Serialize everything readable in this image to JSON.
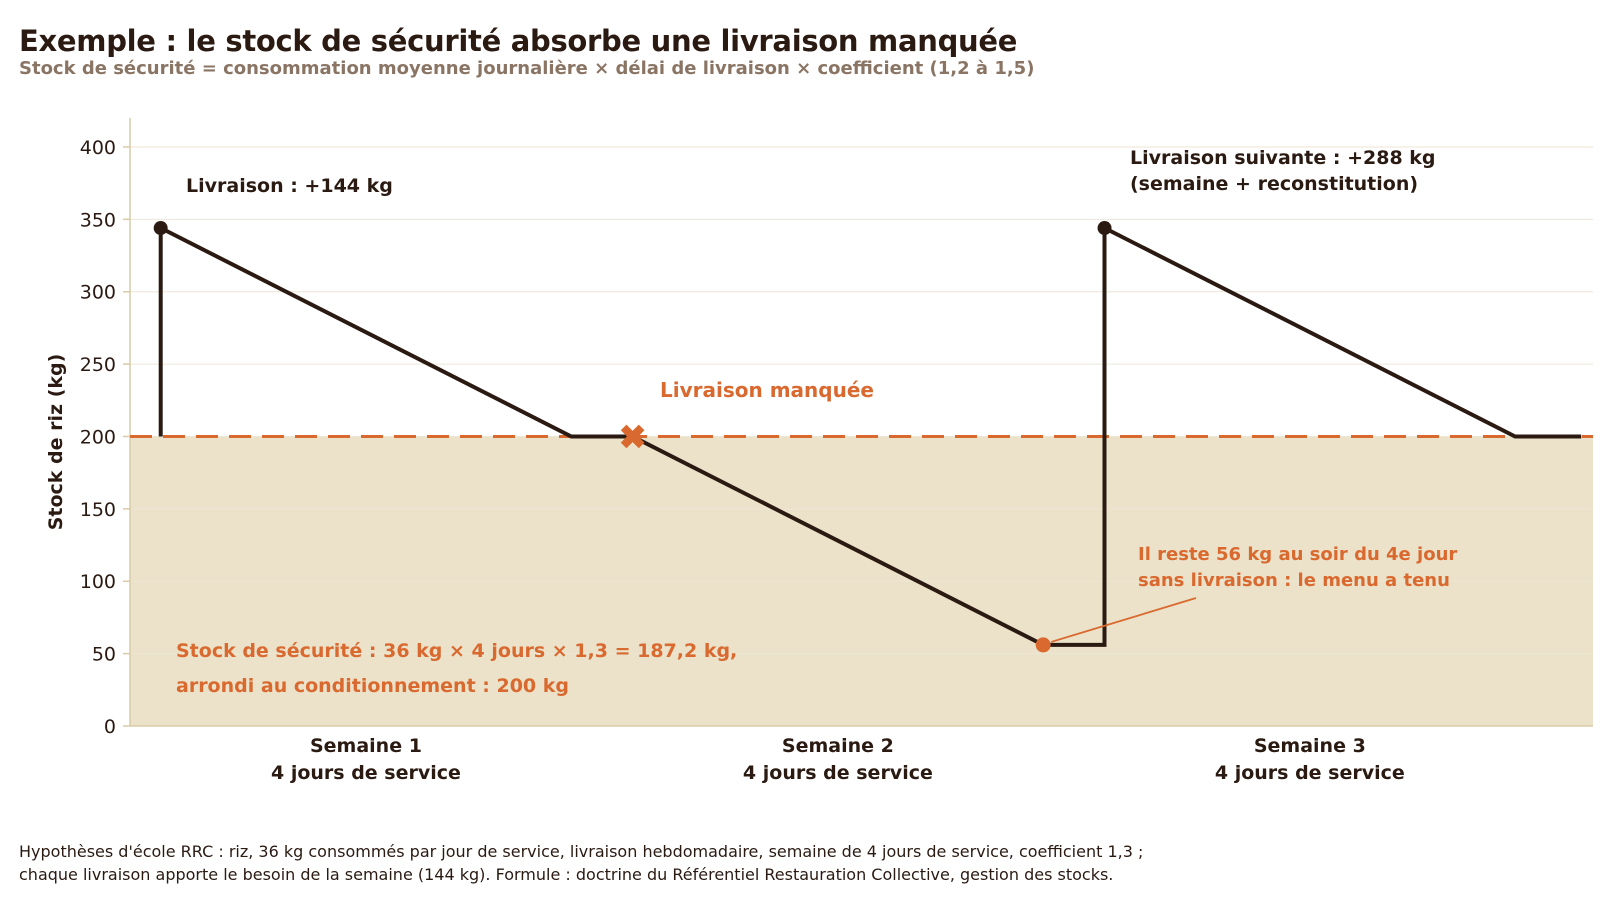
{
  "title": "Exemple : le stock de sécurité absorbe une livraison manquée",
  "subtitle": "Stock de sécurité = consommation moyenne journalière × délai de livraison × coefficient (1,2 à 1,5)",
  "footnote": {
    "line1": "Hypothèses d'école RRC : riz, 36 kg consommés par jour de service, livraison hebdomadaire, semaine de 4 jours de service, coefficient 1,3 ;",
    "line2": "chaque livraison apporte le besoin de la semaine (144 kg). Formule : doctrine du Référentiel Restauration Collective, gestion des stocks."
  },
  "chart_data": {
    "type": "line",
    "ylabel": "Stock de riz (kg)",
    "ylim": [
      0,
      420
    ],
    "yticks": [
      0,
      50,
      100,
      150,
      200,
      250,
      300,
      350,
      400
    ],
    "xlim": [
      0,
      12.4
    ],
    "categories": [
      {
        "x": 2,
        "lines": [
          "Semaine 1",
          "4 jours de service"
        ]
      },
      {
        "x": 6,
        "lines": [
          "Semaine 2",
          "4 jours de service"
        ]
      },
      {
        "x": 10,
        "lines": [
          "Semaine 3",
          "4 jours de service"
        ]
      }
    ],
    "grid": true,
    "series": [
      {
        "values": [
          {
            "x": 0.26,
            "y": 200
          },
          {
            "x": 0.26,
            "y": 344
          },
          {
            "x": 3.74,
            "y": 200
          },
          {
            "x": 4.26,
            "y": 200
          },
          {
            "x": 7.74,
            "y": 56
          },
          {
            "x": 8.26,
            "y": 56
          },
          {
            "x": 8.26,
            "y": 344
          },
          {
            "x": 11.74,
            "y": 200
          },
          {
            "x": 12.3,
            "y": 200
          }
        ]
      }
    ],
    "safety_stock": 200,
    "delivery_points": [
      {
        "x": 0.26,
        "y": 344
      },
      {
        "x": 8.26,
        "y": 344
      }
    ],
    "missed_delivery": {
      "x": 4.26,
      "y": 200
    },
    "low_point": {
      "x": 7.74,
      "y": 56
    },
    "annotations": {
      "delivery1": "Livraison : +144 kg",
      "delivery2_line1": "Livraison suivante : +288 kg",
      "delivery2_line2": "(semaine + reconstitution)",
      "missed": "Livraison manquée",
      "remaining_line1": "Il reste 56 kg au soir du 4e jour",
      "remaining_line2": "sans livraison : le menu a tenu",
      "safety_line1": "Stock de sécurité : 36 kg × 4 jours × 1,3 = 187,2 kg,",
      "safety_line2": "arrondi au conditionnement : 200 kg"
    },
    "colors": {
      "line": "#2a1a12",
      "accent": "#d9692f",
      "zone": "#ebe2c9",
      "grid": "#ece6d6",
      "axis": "#d9cba8"
    }
  }
}
